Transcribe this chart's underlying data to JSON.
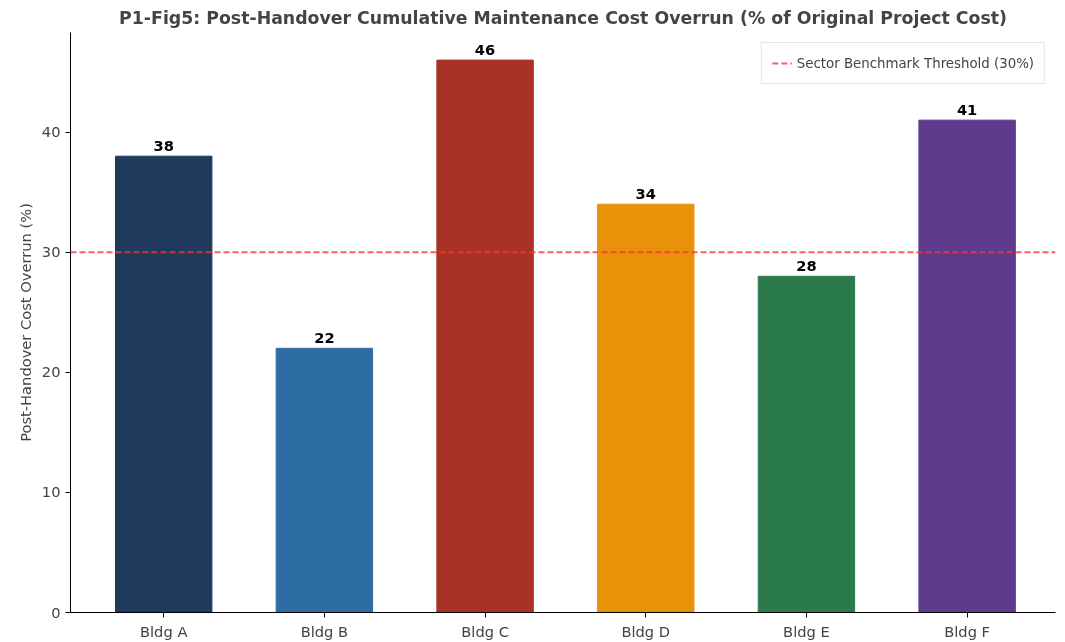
{
  "chart_data": {
    "type": "bar",
    "title": "P1-Fig5: Post-Handover Cumulative Maintenance Cost Overrun (% of Original Project Cost)",
    "ylabel": "Post-Handover Cost Overrun (%)",
    "categories": [
      "Bldg A",
      "Bldg B",
      "Bldg C",
      "Bldg D",
      "Bldg E",
      "Bldg F"
    ],
    "values": [
      38,
      22,
      46,
      34,
      28,
      41
    ],
    "colors": [
      "#1f3a5c",
      "#2e6da4",
      "#a93226",
      "#e8920a",
      "#2a7a4b",
      "#5e3a8c"
    ],
    "ylim": [
      0,
      48.3
    ],
    "yticks": [
      0,
      10,
      20,
      30,
      40
    ],
    "ref_lines": [
      {
        "axis": "y",
        "value": 30,
        "label": "Sector Benchmark Threshold (30%)",
        "color": "#ff3333",
        "line_style": "dashed"
      }
    ],
    "data_labels": true,
    "grid": false,
    "legend": "top right"
  }
}
